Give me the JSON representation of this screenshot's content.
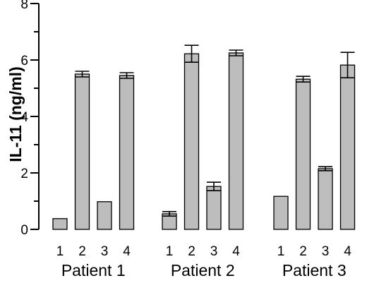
{
  "chart_data": {
    "type": "bar",
    "ylabel": "IL-11 (ng/ml)",
    "ylim": [
      0,
      8
    ],
    "yticks": [
      "0",
      "2",
      "4",
      "6",
      "8"
    ],
    "grid": false,
    "bar_color": "#bdbdbd",
    "groups": [
      {
        "name": "Patient 1",
        "categories": [
          "1",
          "2",
          "3",
          "4"
        ],
        "values": [
          0.38,
          5.5,
          0.98,
          5.45
        ],
        "errors": [
          0,
          0.1,
          0,
          0.1
        ]
      },
      {
        "name": "Patient 2",
        "categories": [
          "1",
          "2",
          "3",
          "4"
        ],
        "values": [
          0.55,
          6.22,
          1.52,
          6.25
        ],
        "errors": [
          0.08,
          0.3,
          0.15,
          0.1
        ]
      },
      {
        "name": "Patient 3",
        "categories": [
          "1",
          "2",
          "3",
          "4"
        ],
        "values": [
          1.17,
          5.32,
          2.15,
          5.82
        ],
        "errors": [
          0,
          0.1,
          0.07,
          0.45
        ]
      }
    ]
  }
}
